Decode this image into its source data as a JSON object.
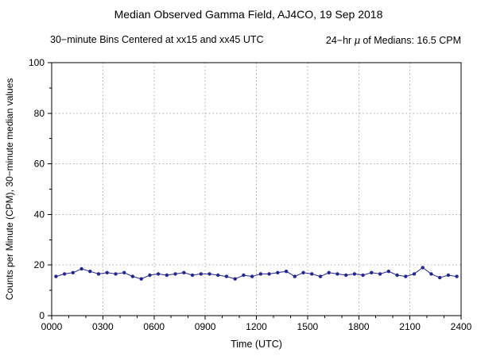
{
  "chart_data": {
    "type": "line",
    "title": "Median Observed Gamma Field, AJ4CO, 19 Sep 2018",
    "subtitle": {
      "left": "30−minute Bins Centered at xx15 and xx45 UTC",
      "right_prefix": "24−hr",
      "right_mu": "μ",
      "right_suffix": "of Medians: 16.5 CPM"
    },
    "mean_of_medians_cpm": 16.5,
    "xlabel": "Time (UTC)",
    "ylabel": "Counts per Minute (CPM), 30−minute median values",
    "xlim": [
      0,
      24
    ],
    "ylim": [
      0,
      100
    ],
    "x_tick_values": [
      0,
      3,
      6,
      9,
      12,
      15,
      18,
      21,
      24
    ],
    "x_tick_labels": [
      "0000",
      "0300",
      "0600",
      "0900",
      "1200",
      "1500",
      "1800",
      "2100",
      "2400"
    ],
    "y_tick_values": [
      0,
      20,
      40,
      60,
      80,
      100
    ],
    "y_tick_labels": [
      "0",
      "20",
      "40",
      "60",
      "80",
      "100"
    ],
    "grid": true,
    "legend": "none",
    "line_color": "#26268f",
    "grid_color": "#aaaaaa",
    "marker": "circle",
    "x": [
      0.25,
      0.75,
      1.25,
      1.75,
      2.25,
      2.75,
      3.25,
      3.75,
      4.25,
      4.75,
      5.25,
      5.75,
      6.25,
      6.75,
      7.25,
      7.75,
      8.25,
      8.75,
      9.25,
      9.75,
      10.25,
      10.75,
      11.25,
      11.75,
      12.25,
      12.75,
      13.25,
      13.75,
      14.25,
      14.75,
      15.25,
      15.75,
      16.25,
      16.75,
      17.25,
      17.75,
      18.25,
      18.75,
      19.25,
      19.75,
      20.25,
      20.75,
      21.25,
      21.75,
      22.25,
      22.75,
      23.25,
      23.75
    ],
    "values": [
      15.5,
      16.5,
      17,
      18.5,
      17.5,
      16.5,
      17,
      16.5,
      17,
      15.5,
      14.5,
      16,
      16.5,
      16,
      16.5,
      17,
      16,
      16.5,
      16.5,
      16,
      15.5,
      14.5,
      16,
      15.5,
      16.5,
      16.5,
      17,
      17.5,
      15.5,
      17,
      16.5,
      15.5,
      17,
      16.5,
      16,
      16.5,
      16,
      17,
      16.5,
      17.5,
      16,
      15.5,
      16.5,
      19,
      16.5,
      15,
      16,
      15.5
    ]
  }
}
